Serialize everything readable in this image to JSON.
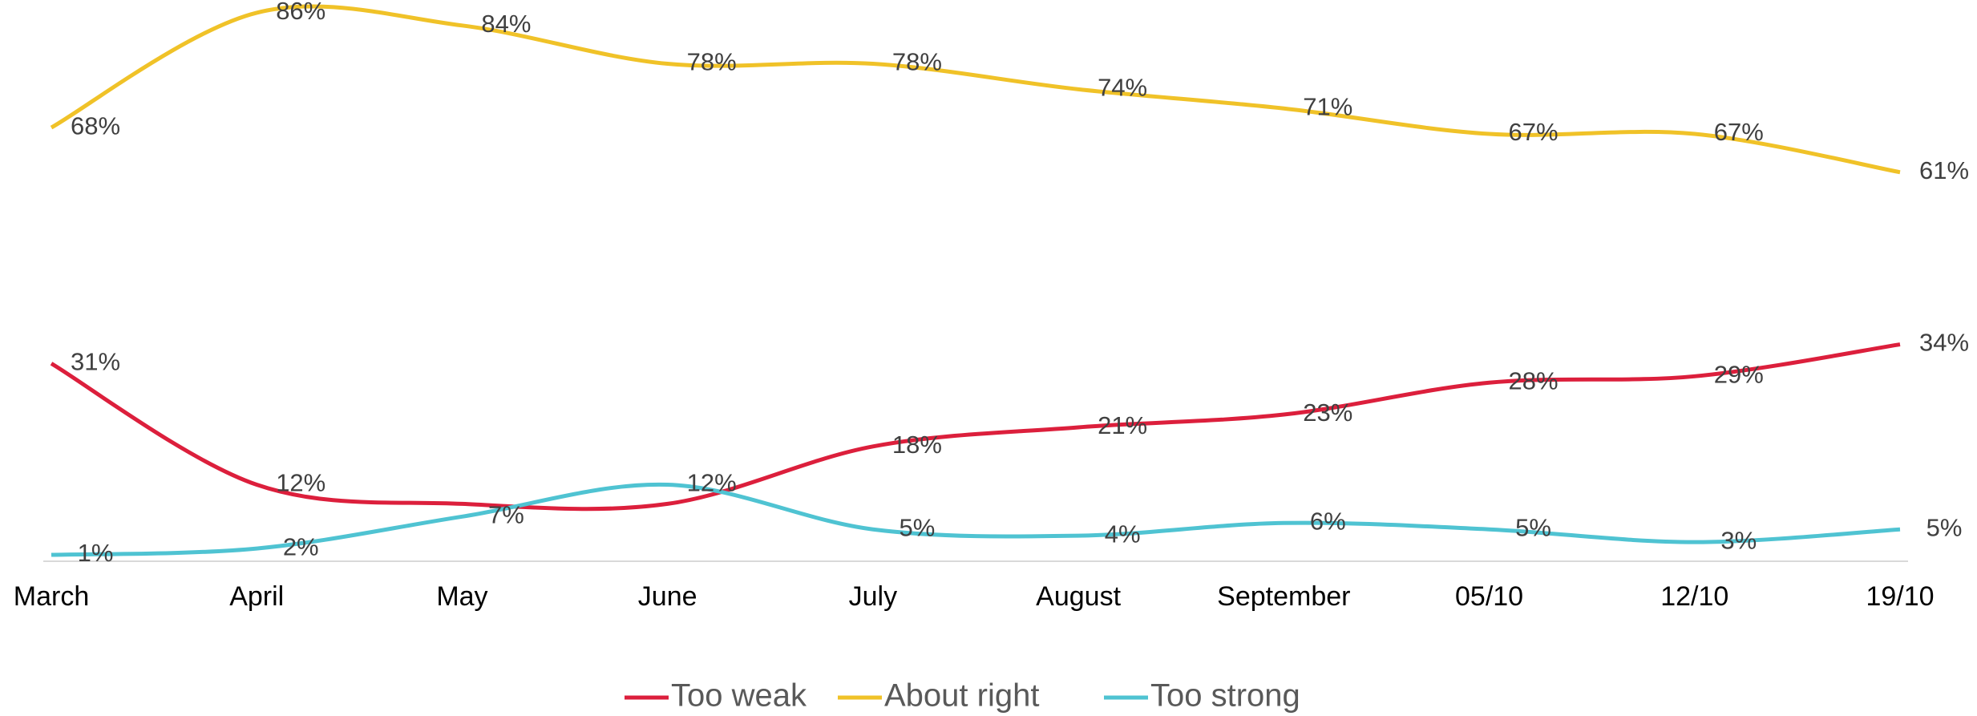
{
  "chart_data": {
    "type": "line",
    "categories": [
      "March",
      "April",
      "May",
      "June",
      "July",
      "August",
      "September",
      "05/10",
      "12/10",
      "19/10"
    ],
    "series": [
      {
        "name": "Too weak",
        "color": "#dc1f3c",
        "values": [
          31,
          12,
          9,
          9,
          18,
          21,
          23,
          28,
          29,
          34
        ],
        "value_labels": [
          "31%",
          "12%",
          null,
          null,
          "18%",
          "21%",
          "23%",
          "28%",
          "29%",
          "34%"
        ]
      },
      {
        "name": "About right",
        "color": "#f0c228",
        "values": [
          68,
          86,
          84,
          78,
          78,
          74,
          71,
          67,
          67,
          61
        ],
        "value_labels": [
          "68%",
          "86%",
          "84%",
          "78%",
          "78%",
          "74%",
          "71%",
          "67%",
          "67%",
          "61%"
        ]
      },
      {
        "name": "Too strong",
        "color": "#4fc3d2",
        "values": [
          1,
          2,
          7,
          12,
          5,
          4,
          6,
          5,
          3,
          5
        ],
        "value_labels": [
          "1%",
          "2%",
          "7%",
          "12%",
          "5%",
          "4%",
          "6%",
          "5%",
          "3%",
          "5%"
        ]
      }
    ],
    "ylim": [
      0,
      88
    ],
    "legend": "bottom"
  }
}
